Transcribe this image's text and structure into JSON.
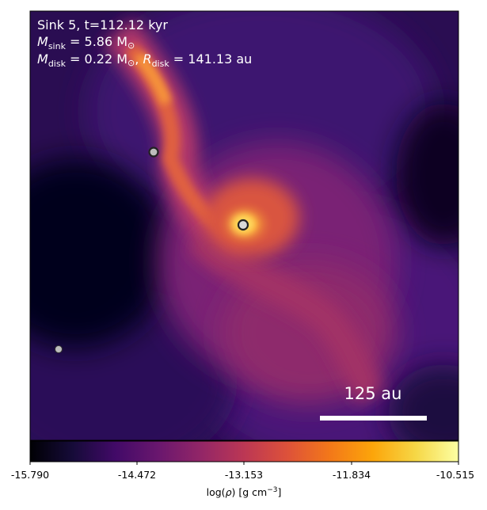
{
  "annotation": {
    "line1": "Sink 5, t=112.12 kyr",
    "line2_sym": "M",
    "line2_sub": "sink",
    "line2_rest": " = 5.86 M",
    "line2_tail": "⊙",
    "line3_sym": "M",
    "line3_sub": "disk",
    "line3_mid": " = 0.22 M",
    "line3_sun": "⊙",
    "line3_sep": ", ",
    "line3_rsym": "R",
    "line3_rsub": "disk",
    "line3_rval": " = 141.13 au"
  },
  "scale_bar": {
    "label": "125 au"
  },
  "colorbar": {
    "ticks": [
      "-15.790",
      "-14.472",
      "-13.153",
      "-11.834",
      "-10.515"
    ],
    "label_pre": "log(",
    "label_rho": "ρ",
    "label_post": ") [g cm",
    "label_exp": "−3",
    "label_end": "]",
    "colormap": "inferno-like"
  },
  "colors": {
    "background_dark": "#0a0520",
    "filament": "#f07a30",
    "core": "#ffd24a",
    "sink_primary_ring": "#1a1a1a",
    "sink_fill": "#d9d9d9",
    "text": "#ffffff"
  }
}
